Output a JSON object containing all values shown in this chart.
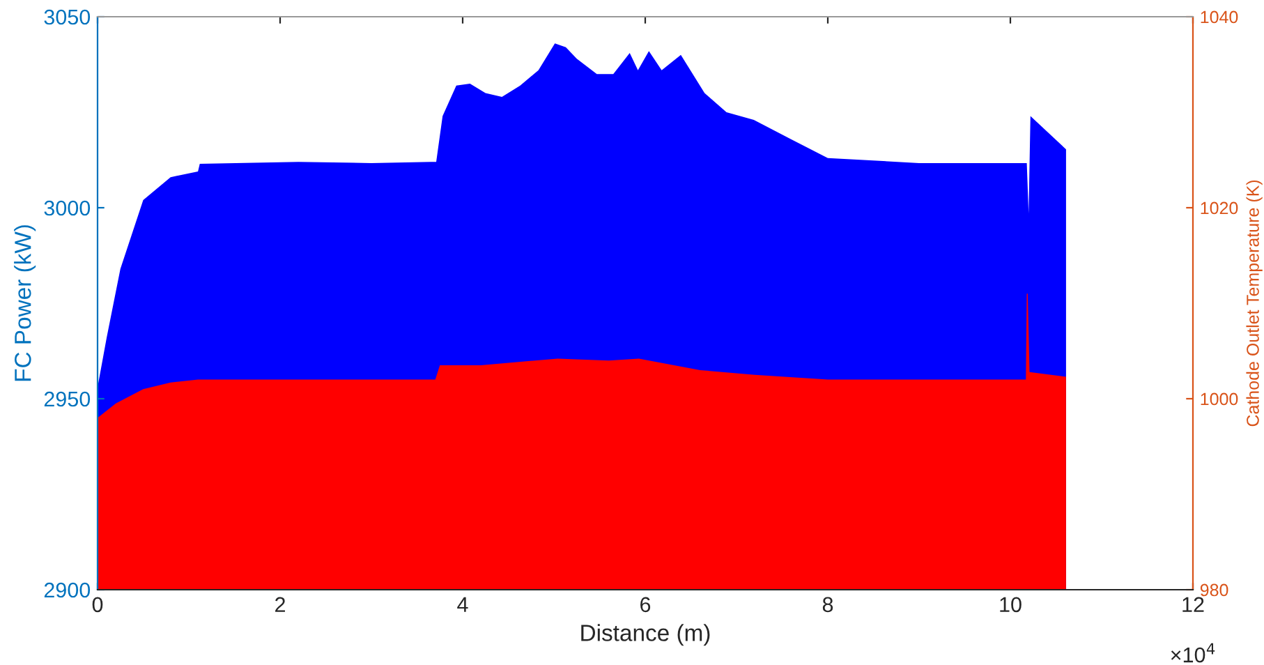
{
  "chart_data": {
    "type": "area",
    "xlabel": "Distance (m)",
    "ylabel": "FC Power (kW)",
    "y2label": "Cathode Outlet Temperature (K)",
    "xlim": [
      0,
      12
    ],
    "xticks": [
      0,
      2,
      4,
      6,
      8,
      10,
      12
    ],
    "ylim": [
      2900,
      3050
    ],
    "yticks": [
      2900,
      2950,
      3000,
      3050
    ],
    "y2lim": [
      980,
      1040
    ],
    "y2ticks": [
      980,
      1000,
      1020,
      1040
    ],
    "annotations": [
      "×10$^{4}$"
    ],
    "series": [
      {
        "color": "#0000ff",
        "x": [
          0,
          0.1,
          0.25,
          0.5,
          0.8,
          1.1,
          1.12,
          2.2,
          3.0,
          3.65,
          3.71,
          3.78,
          3.93,
          4.08,
          4.25,
          4.43,
          4.63,
          4.83,
          5.01,
          5.13,
          5.25,
          5.47,
          5.65,
          5.83,
          5.92,
          6.04,
          6.18,
          6.39,
          6.65,
          6.89,
          7.19,
          7.59,
          8.0,
          9.0,
          10.18,
          10.2,
          10.22,
          10.61
        ],
        "values": [
          2953,
          2966,
          2984,
          3002,
          3008,
          3009.5,
          3011.5,
          3012,
          3011.7,
          3012,
          3012,
          3024,
          3032,
          3032.5,
          3030,
          3029,
          3032,
          3036,
          3043,
          3042,
          3039,
          3035,
          3035,
          3040.5,
          3036,
          3041,
          3036,
          3040,
          3030,
          3025,
          3023,
          3018,
          3013,
          3011.7,
          3011.7,
          2998.5,
          3024,
          3015.3
        ]
      },
      {
        "axis": "y2",
        "color": "#ff0000",
        "x": [
          0,
          0.2,
          0.5,
          0.8,
          1.1,
          2.2,
          3.7,
          3.75,
          4.2,
          5.04,
          5.6,
          5.93,
          6.6,
          7.2,
          8.0,
          10.17,
          10.18,
          10.19,
          10.21,
          10.61
        ],
        "values": [
          998,
          999.5,
          1001,
          1001.7,
          1002,
          1002,
          1002,
          1003.5,
          1003.5,
          1004.2,
          1004,
          1004.2,
          1003,
          1002.5,
          1002,
          1002,
          1011,
          1011,
          1002.8,
          1002.3
        ]
      }
    ]
  }
}
